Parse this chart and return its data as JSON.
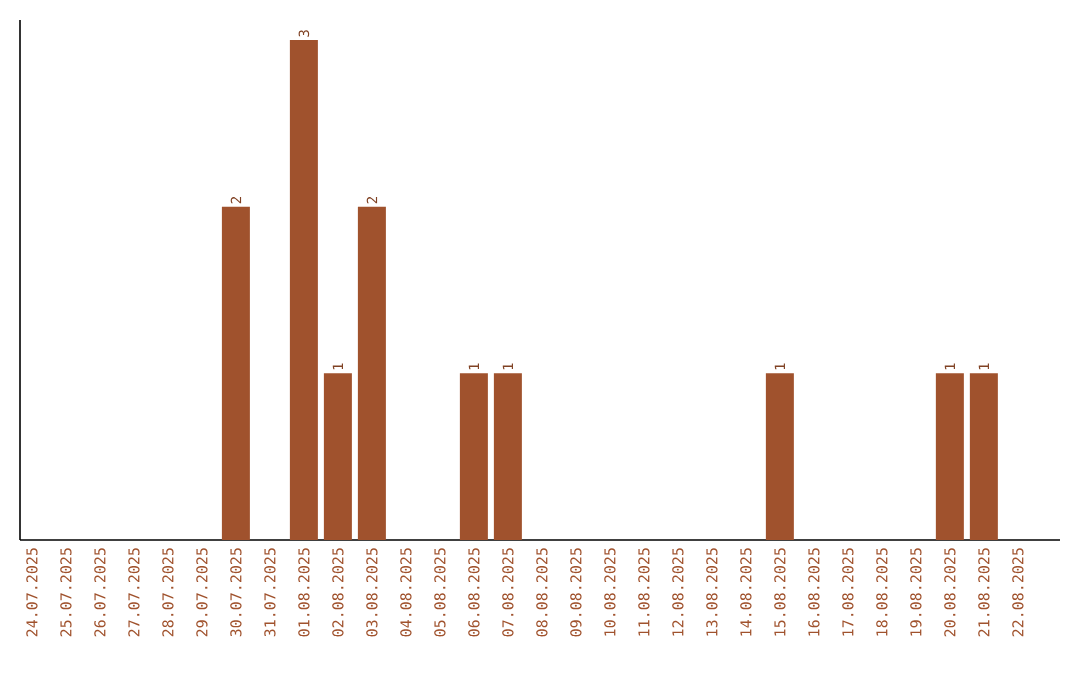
{
  "chart_data": {
    "type": "bar",
    "color": "#a0522d",
    "categories": [
      "24.07.2025",
      "25.07.2025",
      "26.07.2025",
      "27.07.2025",
      "28.07.2025",
      "29.07.2025",
      "30.07.2025",
      "31.07.2025",
      "01.08.2025",
      "02.08.2025",
      "03.08.2025",
      "04.08.2025",
      "05.08.2025",
      "06.08.2025",
      "07.08.2025",
      "08.08.2025",
      "09.08.2025",
      "10.08.2025",
      "11.08.2025",
      "12.08.2025",
      "13.08.2025",
      "14.08.2025",
      "15.08.2025",
      "16.08.2025",
      "17.08.2025",
      "18.08.2025",
      "19.08.2025",
      "20.08.2025",
      "21.08.2025",
      "22.08.2025"
    ],
    "values": [
      0,
      0,
      0,
      0,
      0,
      0,
      2,
      0,
      3,
      1,
      2,
      0,
      0,
      1,
      1,
      0,
      0,
      0,
      0,
      0,
      0,
      0,
      1,
      0,
      0,
      0,
      0,
      1,
      1,
      0
    ],
    "value_labels": [
      null,
      null,
      null,
      null,
      null,
      null,
      "2",
      null,
      "3",
      "1",
      "2",
      null,
      null,
      "1",
      "1",
      null,
      null,
      null,
      null,
      null,
      null,
      null,
      "1",
      null,
      null,
      null,
      null,
      "1",
      "1",
      null
    ],
    "grid": false
  }
}
